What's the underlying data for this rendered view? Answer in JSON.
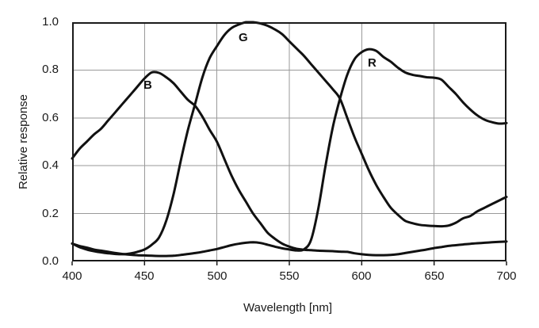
{
  "chart_data": {
    "type": "line",
    "title": "",
    "xlabel": "Wavelength [nm]",
    "ylabel": "Relative response",
    "xlim": [
      400,
      700
    ],
    "ylim": [
      0.0,
      1.0
    ],
    "x_tick_labels": [
      "400",
      "450",
      "500",
      "550",
      "600",
      "650",
      "700"
    ],
    "y_tick_labels": [
      "0.0",
      "0.2",
      "0.4",
      "0.6",
      "0.8",
      "1.0"
    ],
    "grid": true,
    "legend_position": "inline-curve-labels",
    "curve_color": "#111111",
    "grid_color": "#9a9a9a",
    "frame_color": "#1a1a1a",
    "x_start": 400,
    "x_step_nm": 5,
    "series": [
      {
        "name": "B",
        "peak": {
          "x_nm": 456,
          "value": 0.79
        },
        "values": [
          0.43,
          0.47,
          0.5,
          0.53,
          0.555,
          0.59,
          0.625,
          0.66,
          0.695,
          0.73,
          0.765,
          0.79,
          0.788,
          0.77,
          0.745,
          0.71,
          0.675,
          0.65,
          0.605,
          0.55,
          0.5,
          0.43,
          0.36,
          0.3,
          0.25,
          0.2,
          0.16,
          0.12,
          0.095,
          0.075,
          0.062,
          0.053,
          0.049,
          0.047,
          0.045,
          0.044,
          0.043,
          0.041,
          0.04,
          0.034,
          0.03,
          0.027,
          0.026,
          0.026,
          0.027,
          0.03,
          0.035,
          0.04,
          0.045,
          0.05,
          0.056,
          0.06,
          0.065,
          0.068,
          0.071,
          0.074,
          0.076,
          0.078,
          0.08,
          0.082,
          0.083
        ]
      },
      {
        "name": "G",
        "peak": {
          "x_nm": 522,
          "value": 1.0
        },
        "values": [
          0.075,
          0.06,
          0.05,
          0.043,
          0.038,
          0.034,
          0.031,
          0.03,
          0.033,
          0.04,
          0.05,
          0.07,
          0.1,
          0.17,
          0.28,
          0.42,
          0.55,
          0.66,
          0.77,
          0.85,
          0.9,
          0.945,
          0.975,
          0.99,
          1.0,
          1.0,
          0.995,
          0.985,
          0.97,
          0.95,
          0.92,
          0.89,
          0.86,
          0.825,
          0.79,
          0.755,
          0.72,
          0.68,
          0.6,
          0.52,
          0.45,
          0.38,
          0.32,
          0.27,
          0.225,
          0.195,
          0.17,
          0.16,
          0.153,
          0.15,
          0.148,
          0.147,
          0.15,
          0.162,
          0.18,
          0.19,
          0.21,
          0.225,
          0.24,
          0.255,
          0.27
        ]
      },
      {
        "name": "R",
        "peak": {
          "x_nm": 604,
          "value": 0.887
        },
        "values": [
          0.075,
          0.065,
          0.058,
          0.05,
          0.045,
          0.04,
          0.035,
          0.031,
          0.028,
          0.026,
          0.025,
          0.024,
          0.023,
          0.023,
          0.024,
          0.027,
          0.031,
          0.035,
          0.04,
          0.046,
          0.052,
          0.06,
          0.068,
          0.074,
          0.078,
          0.08,
          0.077,
          0.07,
          0.062,
          0.055,
          0.05,
          0.046,
          0.05,
          0.09,
          0.22,
          0.4,
          0.56,
          0.68,
          0.78,
          0.845,
          0.875,
          0.887,
          0.88,
          0.855,
          0.835,
          0.81,
          0.79,
          0.78,
          0.775,
          0.77,
          0.768,
          0.76,
          0.73,
          0.7,
          0.665,
          0.635,
          0.61,
          0.592,
          0.582,
          0.576,
          0.578
        ]
      }
    ],
    "annotations": [
      {
        "text": "B",
        "near_nm": 455,
        "near_value": 0.73
      },
      {
        "text": "G",
        "near_nm": 520,
        "near_value": 0.93
      },
      {
        "text": "R",
        "near_nm": 608,
        "near_value": 0.82
      }
    ]
  }
}
